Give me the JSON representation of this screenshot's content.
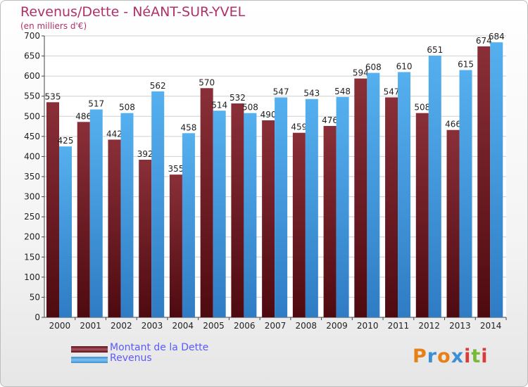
{
  "chart_data": {
    "type": "bar",
    "title": "Revenus/Dette - NéANT-SUR-YVEL",
    "subtitle": "(en milliers d'€)",
    "categories": [
      "2000",
      "2001",
      "2002",
      "2003",
      "2004",
      "2005",
      "2006",
      "2007",
      "2008",
      "2009",
      "2010",
      "2011",
      "2012",
      "2013",
      "2014"
    ],
    "series": [
      {
        "name": "Montant de la Dette",
        "color": "#7a1f2b",
        "values": [
          535,
          486,
          442,
          392,
          355,
          570,
          532,
          490,
          459,
          476,
          594,
          547,
          508,
          466,
          674
        ]
      },
      {
        "name": "Revenus",
        "color": "#4aa3e6",
        "values": [
          425,
          517,
          508,
          562,
          458,
          514,
          508,
          547,
          543,
          548,
          608,
          610,
          651,
          615,
          684
        ]
      }
    ],
    "ylim": [
      0,
      700
    ],
    "yticks": [
      0,
      50,
      100,
      150,
      200,
      250,
      300,
      350,
      400,
      450,
      500,
      550,
      600,
      650,
      700
    ],
    "grid": true,
    "legend_position": "bottom-left"
  },
  "branding": {
    "name": "Proxiti",
    "letters": [
      "P",
      "r",
      "o",
      "x",
      "i",
      "t",
      "i"
    ],
    "letter_colors": [
      "#e8801a",
      "#3a8fd6",
      "#e8801a",
      "#3a8fd6",
      "#d93a3a",
      "#7ab83a",
      "#d93a3a"
    ]
  }
}
